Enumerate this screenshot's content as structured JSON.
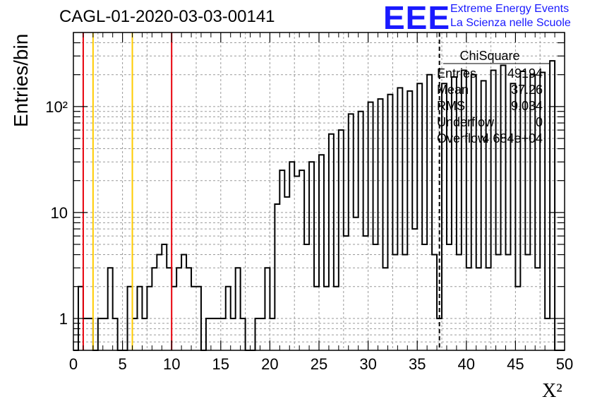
{
  "header": {
    "title": "CAGL-01-2020-03-03-00141",
    "logo_mark": "EEE",
    "logo_line1": "Extreme Energy Events",
    "logo_line2": "La Scienza nelle Scuole",
    "logo_color": "#1a1aff"
  },
  "stats": {
    "name": "ChiSquare",
    "rows": [
      {
        "label": "Entries",
        "value": "49194"
      },
      {
        "label": "Mean",
        "value": "37.26"
      },
      {
        "label": "RMS",
        "value": "9.034"
      },
      {
        "label": "Underflow",
        "value": "0"
      },
      {
        "label": "Overflow",
        "value": "4.684e+04"
      }
    ]
  },
  "chart_data": {
    "type": "histogram",
    "title": "CAGL-01-2020-03-03-00141",
    "xlabel": "X²",
    "ylabel": "Entries/bin",
    "xlim": [
      0,
      50
    ],
    "ylim": [
      0.5,
      500
    ],
    "yscale": "log",
    "grid": true,
    "bin_width": 0.5,
    "x_ticks": [
      "0",
      "5",
      "10",
      "15",
      "20",
      "25",
      "30",
      "35",
      "40",
      "45",
      "50"
    ],
    "y_ticks": [
      {
        "value": 1,
        "label": "1"
      },
      {
        "value": 10,
        "label": "10"
      },
      {
        "value": 100,
        "label": "10²"
      }
    ],
    "bins": [
      [
        0.5,
        2
      ],
      [
        1.0,
        1
      ],
      [
        1.5,
        1
      ],
      [
        2.5,
        1
      ],
      [
        3.0,
        1
      ],
      [
        3.5,
        3
      ],
      [
        4.0,
        1
      ],
      [
        5.5,
        2
      ],
      [
        6.0,
        1
      ],
      [
        6.5,
        2
      ],
      [
        7.0,
        1
      ],
      [
        7.5,
        2
      ],
      [
        8.0,
        3
      ],
      [
        8.5,
        4
      ],
      [
        9.0,
        5
      ],
      [
        9.5,
        3
      ],
      [
        10.0,
        2
      ],
      [
        10.5,
        3
      ],
      [
        11.0,
        4
      ],
      [
        11.5,
        3
      ],
      [
        12.0,
        2
      ],
      [
        12.5,
        2
      ],
      [
        13.5,
        1
      ],
      [
        14.0,
        1
      ],
      [
        14.5,
        1
      ],
      [
        15.0,
        1
      ],
      [
        15.5,
        2
      ],
      [
        16.0,
        1
      ],
      [
        16.5,
        3
      ],
      [
        17.0,
        1
      ],
      [
        18.5,
        1
      ],
      [
        19.0,
        1
      ],
      [
        19.5,
        3
      ],
      [
        20.0,
        1
      ],
      [
        20.5,
        12
      ],
      [
        21.0,
        25
      ],
      [
        21.5,
        14
      ],
      [
        22.0,
        30
      ],
      [
        22.5,
        22
      ],
      [
        23.0,
        25
      ],
      [
        23.5,
        5
      ],
      [
        24.0,
        30
      ],
      [
        24.5,
        2
      ],
      [
        25.0,
        35
      ],
      [
        25.5,
        2
      ],
      [
        26.0,
        55
      ],
      [
        26.5,
        2
      ],
      [
        27.0,
        60
      ],
      [
        27.5,
        6
      ],
      [
        28.0,
        85
      ],
      [
        28.5,
        9
      ],
      [
        29.0,
        90
      ],
      [
        29.5,
        6
      ],
      [
        30.0,
        110
      ],
      [
        30.5,
        5
      ],
      [
        31.0,
        118
      ],
      [
        31.5,
        3
      ],
      [
        32.0,
        130
      ],
      [
        32.5,
        4
      ],
      [
        33.0,
        150
      ],
      [
        33.5,
        4
      ],
      [
        34.0,
        140
      ],
      [
        34.5,
        7
      ],
      [
        35.0,
        165
      ],
      [
        35.5,
        5
      ],
      [
        36.0,
        200
      ],
      [
        36.5,
        4
      ],
      [
        37.0,
        1
      ],
      [
        37.5,
        165
      ],
      [
        38.0,
        5
      ],
      [
        38.5,
        190
      ],
      [
        39.0,
        4
      ],
      [
        39.5,
        220
      ],
      [
        40.0,
        3
      ],
      [
        40.5,
        200
      ],
      [
        41.0,
        3
      ],
      [
        41.5,
        175
      ],
      [
        42.0,
        3
      ],
      [
        42.5,
        220
      ],
      [
        43.0,
        4
      ],
      [
        43.5,
        245
      ],
      [
        44.0,
        4
      ],
      [
        44.5,
        165
      ],
      [
        45.0,
        2
      ],
      [
        45.5,
        215
      ],
      [
        46.0,
        4
      ],
      [
        46.5,
        200
      ],
      [
        47.0,
        3
      ],
      [
        47.5,
        210
      ],
      [
        48.0,
        1
      ],
      [
        48.5,
        270
      ]
    ],
    "vertical_lines": [
      {
        "x": 1,
        "color": "#e8000b",
        "kind": "red"
      },
      {
        "x": 2,
        "color": "#ffcc00",
        "kind": "yellow"
      },
      {
        "x": 6,
        "color": "#ffcc00",
        "kind": "yellow"
      },
      {
        "x": 10,
        "color": "#e8000b",
        "kind": "red"
      },
      {
        "x": 37.26,
        "color": "#000000",
        "kind": "mean-dashed"
      }
    ]
  }
}
